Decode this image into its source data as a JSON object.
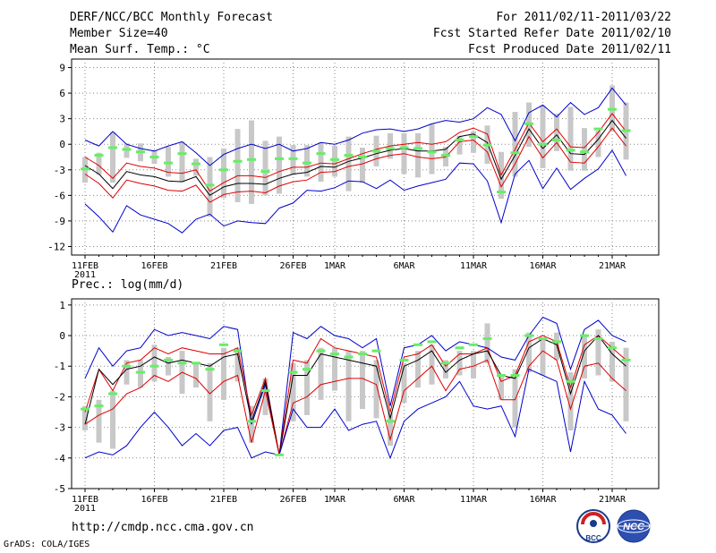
{
  "header": {
    "title": "DERF/NCC/BCC Monthly Forecast",
    "member_size": "Member Size=40",
    "variable": "Mean Surf. Temp.: °C",
    "period": "For 2011/02/11-2011/03/22",
    "started": "Fcst Started Refer Date 2011/02/10",
    "produced": "Fcst Produced Date 2011/02/11"
  },
  "footer": {
    "url": "http://cmdp.ncc.cma.gov.cn",
    "credit": "GrADS: COLA/IGES",
    "logo_left_label": "BCC",
    "logo_right_label": "NCC"
  },
  "colors": {
    "ensemble_mean": "#000000",
    "spread_band": "#e00000",
    "extreme_bounds": "#0000cc",
    "box": "#c8c8c8",
    "median_marker": "#66ee66",
    "grid": "#888888"
  },
  "chart_data": [
    {
      "type": "line",
      "title": "Mean Surf. Temp.: °C",
      "ylabel": "°C",
      "ylim": [
        -13,
        10
      ],
      "yticks": [
        9,
        6,
        3,
        0,
        -3,
        -6,
        -9,
        -12
      ],
      "xtick_positions": [
        0,
        5,
        10,
        15,
        18,
        23,
        28,
        33,
        38
      ],
      "xtick_labels": [
        "11FEB",
        "16FEB",
        "21FEB",
        "26FEB",
        "1MAR",
        "6MAR",
        "11MAR",
        "16MAR",
        "21MAR"
      ],
      "xtick_sublabel": "2011",
      "n_days": 40,
      "series": [
        {
          "name": "upper",
          "color": "blue",
          "values": [
            0.5,
            -0.2,
            1.5,
            0,
            -0.5,
            -0.8,
            -0.2,
            0.3,
            -1,
            -2.5,
            -1.2,
            -0.5,
            0,
            -0.5,
            0,
            -0.8,
            -0.5,
            0.2,
            0,
            0.5,
            1.3,
            1.7,
            1.8,
            1.5,
            1.8,
            2.4,
            2.8,
            2.6,
            3,
            4.3,
            3.5,
            0.4,
            3.7,
            4.6,
            3.2,
            4.9,
            3.5,
            4.3,
            6.6,
            4.6
          ]
        },
        {
          "name": "upper_spread",
          "color": "red",
          "values": [
            -1.5,
            -2.5,
            -4,
            -2.2,
            -2.6,
            -2.8,
            -3.3,
            -3.4,
            -3,
            -5.5,
            -4.5,
            -3.7,
            -3.7,
            -3.9,
            -3.2,
            -2.7,
            -2.7,
            -2.2,
            -2.3,
            -1.7,
            -1.1,
            -0.6,
            -0.2,
            0,
            0.2,
            0,
            0.3,
            1.4,
            1.9,
            1.2,
            -3.6,
            -0.6,
            2.5,
            0.3,
            1.8,
            -0.3,
            -0.4,
            1.4,
            3.6,
            1.5
          ]
        },
        {
          "name": "mean",
          "color": "black",
          "values": [
            -2.5,
            -3.5,
            -5.2,
            -3.2,
            -3.6,
            -3.8,
            -4.3,
            -4.4,
            -3.8,
            -6,
            -5,
            -4.6,
            -4.6,
            -4.7,
            -4,
            -3.5,
            -3.3,
            -2.6,
            -2.7,
            -2,
            -1.6,
            -1.1,
            -0.7,
            -0.5,
            -0.8,
            -0.8,
            -0.6,
            0.9,
            1.2,
            0.2,
            -4.1,
            -1.3,
            1.8,
            -0.5,
            1.1,
            -1.1,
            -1.2,
            0.6,
            2.8,
            0.7
          ]
        },
        {
          "name": "lower_spread",
          "color": "red",
          "values": [
            -3.5,
            -4.6,
            -6.3,
            -4.2,
            -4.6,
            -4.9,
            -5.4,
            -5.5,
            -4.8,
            -6.8,
            -5.9,
            -5.6,
            -5.5,
            -5.7,
            -4.9,
            -4.4,
            -4.2,
            -3.3,
            -3.2,
            -2.6,
            -2.3,
            -1.7,
            -1.3,
            -1.1,
            -1.5,
            -1.7,
            -1.5,
            0.3,
            0.5,
            -0.9,
            -5,
            -2.3,
            0.9,
            -1.6,
            0.2,
            -2.1,
            -2.2,
            -0.3,
            1.9,
            -0.2
          ]
        },
        {
          "name": "lower",
          "color": "blue",
          "values": [
            -7,
            -8.5,
            -10.3,
            -7.2,
            -8.3,
            -8.8,
            -9.3,
            -10.4,
            -8.8,
            -8.2,
            -9.6,
            -9,
            -9.2,
            -9.3,
            -7.5,
            -6.9,
            -5.4,
            -5.5,
            -5.1,
            -4.3,
            -4.4,
            -5.2,
            -4.2,
            -5.4,
            -4.9,
            -4.5,
            -4.1,
            -2.2,
            -2.3,
            -4.3,
            -9.2,
            -3.5,
            -1.9,
            -5.2,
            -2.8,
            -5.3,
            -4,
            -2.9,
            -0.7,
            -3.7
          ]
        }
      ],
      "boxes": {
        "upper": [
          -1.5,
          -1,
          1.4,
          0.1,
          0.1,
          -0.7,
          -0.3,
          0.3,
          -1.7,
          -1.5,
          -0.5,
          1.8,
          2.8,
          0.4,
          0.9,
          -0.1,
          -0.1,
          0.2,
          -0.2,
          0.9,
          -0.4,
          1,
          1.3,
          1.3,
          1.3,
          2.4,
          -0.3,
          1,
          1.5,
          2.2,
          -0.9,
          3.8,
          4.9,
          4.5,
          3.6,
          4.4,
          1.9,
          1.6,
          6.9,
          4.9
        ],
        "lower": [
          -4.5,
          -3.6,
          -4.5,
          -1.6,
          -2,
          -2.3,
          -3.8,
          -4.4,
          -3.7,
          -8.5,
          -6.3,
          -6.8,
          -7,
          -6,
          -5.8,
          -3.6,
          -3.8,
          -4.4,
          -3.8,
          -5.5,
          -4.5,
          -2.6,
          -1.7,
          -3.5,
          -3.9,
          -3.5,
          -2.6,
          -1.2,
          -1,
          -2.3,
          -6.4,
          -3.8,
          -0.3,
          -2.8,
          -0.8,
          -3.1,
          -3.1,
          -1.5,
          1.5,
          -1.8
        ]
      },
      "markers": [
        -2.9,
        -1.3,
        -0.4,
        -0.6,
        -0.9,
        -1.5,
        -2.2,
        -1.1,
        -2.3,
        -4.8,
        -3,
        -2,
        -1.8,
        -3.2,
        -1.7,
        -1.7,
        -2.2,
        -1.1,
        -1.8,
        -1.3,
        -1.5,
        -0.8,
        -0.5,
        -0.4,
        -0.5,
        -0.9,
        -1.3,
        0.5,
        0.9,
        -0.1,
        -5.6,
        -1,
        2.4,
        0,
        0.5,
        -0.7,
        -0.9,
        1.8,
        4.1,
        1.6
      ]
    },
    {
      "type": "line",
      "title": "Prec.: log(mm/d)",
      "ylabel": "log(mm/d)",
      "ylim": [
        -5,
        1.2
      ],
      "yticks": [
        1,
        0,
        -1,
        -2,
        -3,
        -4,
        -5
      ],
      "xtick_positions": [
        0,
        5,
        10,
        15,
        18,
        23,
        28,
        33,
        38
      ],
      "xtick_labels": [
        "11FEB",
        "16FEB",
        "21FEB",
        "26FEB",
        "1MAR",
        "6MAR",
        "11MAR",
        "16MAR",
        "21MAR"
      ],
      "xtick_sublabel": "2011",
      "n_days": 40,
      "series": [
        {
          "name": "upper",
          "color": "blue",
          "values": [
            -1.4,
            -0.4,
            -1,
            -0.5,
            -0.4,
            0.2,
            0,
            0.1,
            0,
            -0.1,
            0.3,
            0.2,
            -2.9,
            -1.6,
            -3.9,
            0.1,
            -0.1,
            0.3,
            0,
            -0.1,
            -0.4,
            -0.1,
            -2.3,
            -0.4,
            -0.3,
            0,
            -0.5,
            -0.2,
            -0.3,
            -0.4,
            -0.7,
            -0.8,
            0,
            0.6,
            0.4,
            -1.1,
            0.2,
            0.5,
            0,
            -0.2
          ]
        },
        {
          "name": "upper_spread",
          "color": "red",
          "values": [
            -2.5,
            -1.1,
            -1.8,
            -0.9,
            -0.8,
            -0.4,
            -0.6,
            -0.4,
            -0.5,
            -0.6,
            -0.6,
            -0.4,
            -2.6,
            -1.4,
            -3.9,
            -0.8,
            -0.9,
            -0.1,
            -0.4,
            -0.5,
            -0.6,
            -0.7,
            -2.5,
            -0.7,
            -0.6,
            -0.3,
            -1,
            -0.6,
            -0.6,
            -0.4,
            -1.5,
            -1.3,
            -0.2,
            0,
            -0.2,
            -1.7,
            -0.3,
            0,
            -0.4,
            -0.8
          ]
        },
        {
          "name": "mean",
          "color": "black",
          "values": [
            -2.9,
            -1.1,
            -1.6,
            -1.1,
            -1,
            -0.7,
            -0.9,
            -0.8,
            -0.9,
            -1,
            -0.7,
            -0.6,
            -2.8,
            -1.5,
            -3.9,
            -1.3,
            -1.3,
            -0.6,
            -0.7,
            -0.8,
            -0.9,
            -1,
            -2.7,
            -1,
            -0.8,
            -0.5,
            -1.2,
            -0.8,
            -0.6,
            -0.5,
            -1.3,
            -1.4,
            -0.4,
            -0.1,
            -0.3,
            -1.9,
            -0.5,
            0,
            -0.6,
            -1
          ]
        },
        {
          "name": "lower_spread",
          "color": "red",
          "values": [
            -2.9,
            -2.6,
            -2.4,
            -1.9,
            -1.7,
            -1.3,
            -1.5,
            -1.2,
            -1.4,
            -1.9,
            -1.5,
            -1.3,
            -3.5,
            -1.8,
            -3.9,
            -2.2,
            -2,
            -1.6,
            -1.5,
            -1.4,
            -1.4,
            -1.6,
            -3.4,
            -1.8,
            -1.4,
            -1,
            -1.8,
            -1.1,
            -1,
            -0.8,
            -2.1,
            -2.1,
            -1,
            -0.5,
            -0.8,
            -2.4,
            -1,
            -0.9,
            -1.4,
            -1.8
          ]
        },
        {
          "name": "lower",
          "color": "blue",
          "values": [
            -4,
            -3.8,
            -3.9,
            -3.6,
            -3,
            -2.5,
            -3,
            -3.6,
            -3.2,
            -3.6,
            -3.1,
            -3,
            -4,
            -3.8,
            -3.9,
            -2.4,
            -3,
            -3,
            -2.4,
            -3.1,
            -2.9,
            -2.8,
            -4,
            -2.8,
            -2.4,
            -2.2,
            -2,
            -1.5,
            -2.3,
            -2.4,
            -2.3,
            -3.3,
            -1.1,
            -1.3,
            -1.5,
            -3.8,
            -1.5,
            -2.4,
            -2.6,
            -3.2
          ]
        }
      ],
      "boxes": {
        "upper": [
          -2.3,
          -2.1,
          -1.8,
          -0.8,
          -0.8,
          -0.3,
          -0.7,
          -0.5,
          -0.9,
          -0.9,
          -0.4,
          -0.4,
          -2.3,
          -1.4,
          -3.9,
          -0.9,
          -0.8,
          -0.4,
          -0.4,
          -0.5,
          -0.5,
          -0.8,
          -2.5,
          -0.9,
          -0.5,
          -0.3,
          -0.8,
          -0.5,
          -0.5,
          0.4,
          -1.3,
          -1.1,
          0.1,
          -0.1,
          0.1,
          -1.2,
          0,
          0.2,
          -0.2,
          -0.4
        ],
        "lower": [
          -3.1,
          -3.5,
          -3.7,
          -1.6,
          -1.7,
          -1.5,
          -1.3,
          -1.9,
          -1.7,
          -2.8,
          -2.1,
          -1.5,
          -3.5,
          -2.6,
          -3.9,
          -2.8,
          -2.6,
          -2.1,
          -1.8,
          -2.8,
          -2.4,
          -2.7,
          -3.6,
          -2.2,
          -1.7,
          -1.6,
          -1.4,
          -1.3,
          -1.4,
          -0.9,
          -2.1,
          -3,
          -1.2,
          -1.3,
          -0.8,
          -3.1,
          -1.4,
          -1.3,
          -1.5,
          -2.8
        ]
      },
      "markers": [
        -2.4,
        -2.3,
        -1.9,
        -1,
        -1.2,
        -1,
        -0.8,
        -0.9,
        -0.9,
        -1.1,
        -0.3,
        -0.5,
        -2.8,
        -1.8,
        -3.9,
        -1.2,
        -1.1,
        -0.5,
        -0.6,
        -0.7,
        -0.6,
        -0.5,
        -2.8,
        -0.8,
        -0.3,
        -0.2,
        -0.9,
        -0.4,
        -0.3,
        -0.1,
        -1.3,
        -1.3,
        0,
        -0.1,
        -0.2,
        -1.5,
        0,
        -0.1,
        -0.4,
        -0.8
      ]
    }
  ]
}
